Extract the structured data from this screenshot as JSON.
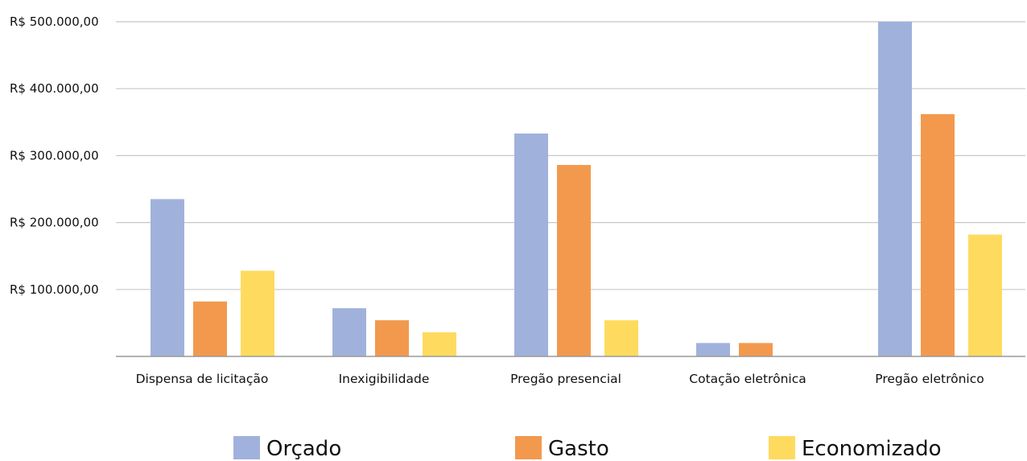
{
  "chart_data": {
    "type": "bar",
    "categories": [
      "Dispensa de licitação",
      "Inexigibilidade",
      "Pregão presencial",
      "Cotação eletrônica",
      "Pregão eletrônico"
    ],
    "series": [
      {
        "name": "Orçado",
        "color": "#a0b2dc",
        "values": [
          235000,
          72000,
          333000,
          20000,
          500000
        ]
      },
      {
        "name": "Gasto",
        "color": "#f2994e",
        "values": [
          82000,
          54000,
          286000,
          20000,
          362000
        ]
      },
      {
        "name": "Economizado",
        "color": "#fedb5f",
        "values": [
          128000,
          36000,
          54000,
          0,
          182000
        ]
      }
    ],
    "y_ticks": [
      {
        "value": 100000,
        "label": "R$ 100.000,00"
      },
      {
        "value": 200000,
        "label": "R$ 200.000,00"
      },
      {
        "value": 300000,
        "label": "R$ 300.000,00"
      },
      {
        "value": 400000,
        "label": "R$ 400.000,00"
      },
      {
        "value": 500000,
        "label": "R$ 500.000,00"
      }
    ],
    "ylim": [
      0,
      500000
    ],
    "grid": true,
    "legend_position": "bottom",
    "gridline_color": "#c8c8c8",
    "axis_color": "#999999"
  }
}
